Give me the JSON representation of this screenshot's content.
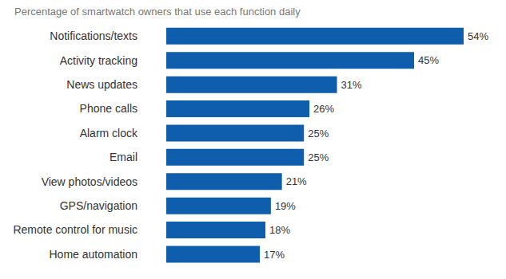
{
  "chart_data": {
    "type": "bar",
    "subtitle": "Percentage of smartwatch owners that use each function daily",
    "orientation": "horizontal",
    "categories": [
      "Notifications/texts",
      "Activity tracking",
      "News updates",
      "Phone calls",
      "Alarm clock",
      "Email",
      "View photos/videos",
      "GPS/navigation",
      "Remote control for music",
      "Home automation"
    ],
    "values": [
      54,
      45,
      31,
      26,
      25,
      25,
      21,
      19,
      18,
      17
    ],
    "value_labels": [
      "54%",
      "45%",
      "31%",
      "26%",
      "25%",
      "25%",
      "21%",
      "19%",
      "18%",
      "17%"
    ],
    "color": "#0e5ead",
    "data_labels": true,
    "tick_labels": "y",
    "grid": false
  }
}
